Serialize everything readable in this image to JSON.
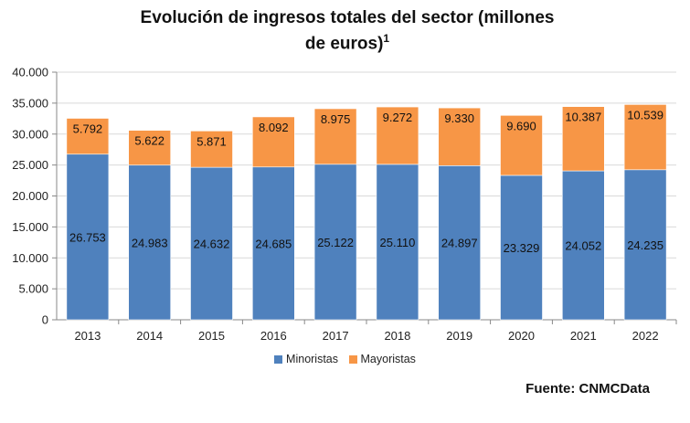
{
  "title_line1": "Evolución de ingresos totales del sector (millones",
  "title_line2": "de euros)",
  "title_sup": "1",
  "source": "Fuente: CNMCData",
  "colors": {
    "minoristas": "#4f81bd",
    "mayoristas": "#f79646",
    "axis": "#888888",
    "grid": "#d9d9d9"
  },
  "chart_data": {
    "type": "bar",
    "stacked": true,
    "categories": [
      "2013",
      "2014",
      "2015",
      "2016",
      "2017",
      "2018",
      "2019",
      "2020",
      "2021",
      "2022"
    ],
    "series": [
      {
        "name": "Minoristas",
        "values": [
          26753,
          24983,
          24632,
          24685,
          25122,
          25110,
          24897,
          23329,
          24052,
          24235
        ],
        "labels": [
          "26.753",
          "24.983",
          "24.632",
          "24.685",
          "25.122",
          "25.110",
          "24.897",
          "23.329",
          "24.052",
          "24.235"
        ]
      },
      {
        "name": "Mayoristas",
        "values": [
          5792,
          5622,
          5871,
          8092,
          8975,
          9272,
          9330,
          9690,
          10387,
          10539
        ],
        "labels": [
          "5.792",
          "5.622",
          "5.871",
          "8.092",
          "8.975",
          "9.272",
          "9.330",
          "9.690",
          "10.387",
          "10.539"
        ]
      }
    ],
    "yticks": [
      0,
      5000,
      10000,
      15000,
      20000,
      25000,
      30000,
      35000,
      40000
    ],
    "ytick_labels": [
      "0",
      "5.000",
      "10.000",
      "15.000",
      "20.000",
      "25.000",
      "30.000",
      "35.000",
      "40.000"
    ],
    "ylim": [
      0,
      40000
    ],
    "legend_position": "bottom"
  }
}
